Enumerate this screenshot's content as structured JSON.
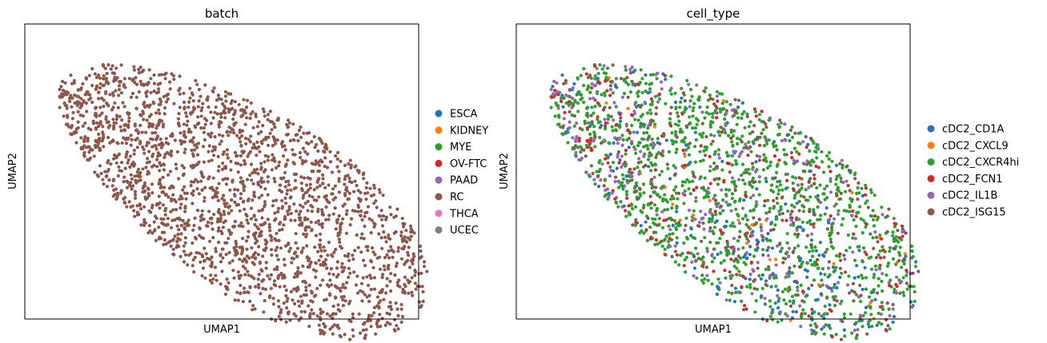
{
  "chart_data": [
    {
      "type": "scatter",
      "title": "batch",
      "xlabel": "UMAP1",
      "ylabel": "UMAP2",
      "grid": false,
      "ticks": false,
      "legend_position": "right",
      "dominant_category": "RC",
      "approx_point_count": 2200,
      "series": [
        {
          "name": "ESCA",
          "color": "#1f77b4",
          "count": 0
        },
        {
          "name": "KIDNEY",
          "color": "#ff7f0e",
          "count": 0
        },
        {
          "name": "MYE",
          "color": "#2ca02c",
          "count": 0
        },
        {
          "name": "OV-FTC",
          "color": "#d62728",
          "count": 0
        },
        {
          "name": "PAAD",
          "color": "#9467bd",
          "count": 0
        },
        {
          "name": "RC",
          "color": "#8c564b",
          "count": 2200
        },
        {
          "name": "THCA",
          "color": "#e377c2",
          "count": 0
        },
        {
          "name": "UCEC",
          "color": "#7f7f7f",
          "count": 0
        }
      ]
    },
    {
      "type": "scatter",
      "title": "cell_type",
      "xlabel": "UMAP1",
      "ylabel": "UMAP2",
      "grid": false,
      "ticks": false,
      "legend_position": "right",
      "approx_point_count": 2200,
      "series": [
        {
          "name": "cDC2_CD1A",
          "color": "#1f77b4",
          "count": 300
        },
        {
          "name": "cDC2_CXCL9",
          "color": "#ff7f0e",
          "count": 30
        },
        {
          "name": "cDC2_CXCR4hi",
          "color": "#2ca02c",
          "count": 1100
        },
        {
          "name": "cDC2_FCN1",
          "color": "#d62728",
          "count": 210
        },
        {
          "name": "cDC2_IL1B",
          "color": "#9467bd",
          "count": 260
        },
        {
          "name": "cDC2_ISG15",
          "color": "#8c564b",
          "count": 300
        }
      ]
    }
  ]
}
